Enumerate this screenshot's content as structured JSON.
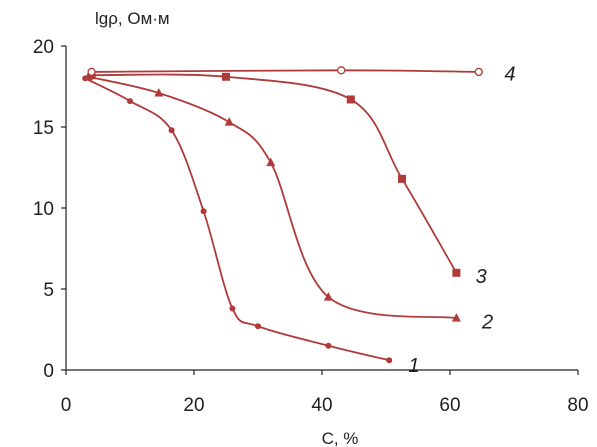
{
  "chart_data": {
    "type": "line",
    "ylabel": "lgρ, Ом·м",
    "xlabel": "C, %",
    "xlim": [
      0,
      80
    ],
    "ylim": [
      0,
      20
    ],
    "x_ticks": [
      0,
      20,
      40,
      60,
      80
    ],
    "y_ticks": [
      0,
      5,
      10,
      15,
      20
    ],
    "grid": false,
    "line_color": "#b03a3a",
    "series": [
      {
        "name": "1",
        "marker": "dot",
        "x": [
          3,
          10,
          16.5,
          21.5,
          26,
          30,
          41,
          50.5
        ],
        "y": [
          18,
          16.6,
          14.8,
          9.8,
          3.8,
          2.7,
          1.5,
          0.6
        ]
      },
      {
        "name": "2",
        "marker": "triangle",
        "x": [
          3.5,
          14.5,
          25.5,
          32,
          41,
          61
        ],
        "y": [
          18.1,
          17.1,
          15.3,
          12.8,
          4.5,
          3.2
        ]
      },
      {
        "name": "3",
        "marker": "square",
        "x": [
          4,
          25,
          44.5,
          52.5,
          61
        ],
        "y": [
          18.2,
          18.1,
          16.7,
          11.8,
          6
        ]
      },
      {
        "name": "4",
        "marker": "circle",
        "x": [
          4,
          43,
          64.5
        ],
        "y": [
          18.4,
          18.5,
          18.4
        ]
      }
    ],
    "series_label_points": [
      {
        "name": "1",
        "x": 53.5,
        "y": 0.3
      },
      {
        "name": "2",
        "x": 65,
        "y": 3
      },
      {
        "name": "3",
        "x": 64,
        "y": 5.8
      },
      {
        "name": "4",
        "x": 68.5,
        "y": 18.3
      }
    ]
  }
}
